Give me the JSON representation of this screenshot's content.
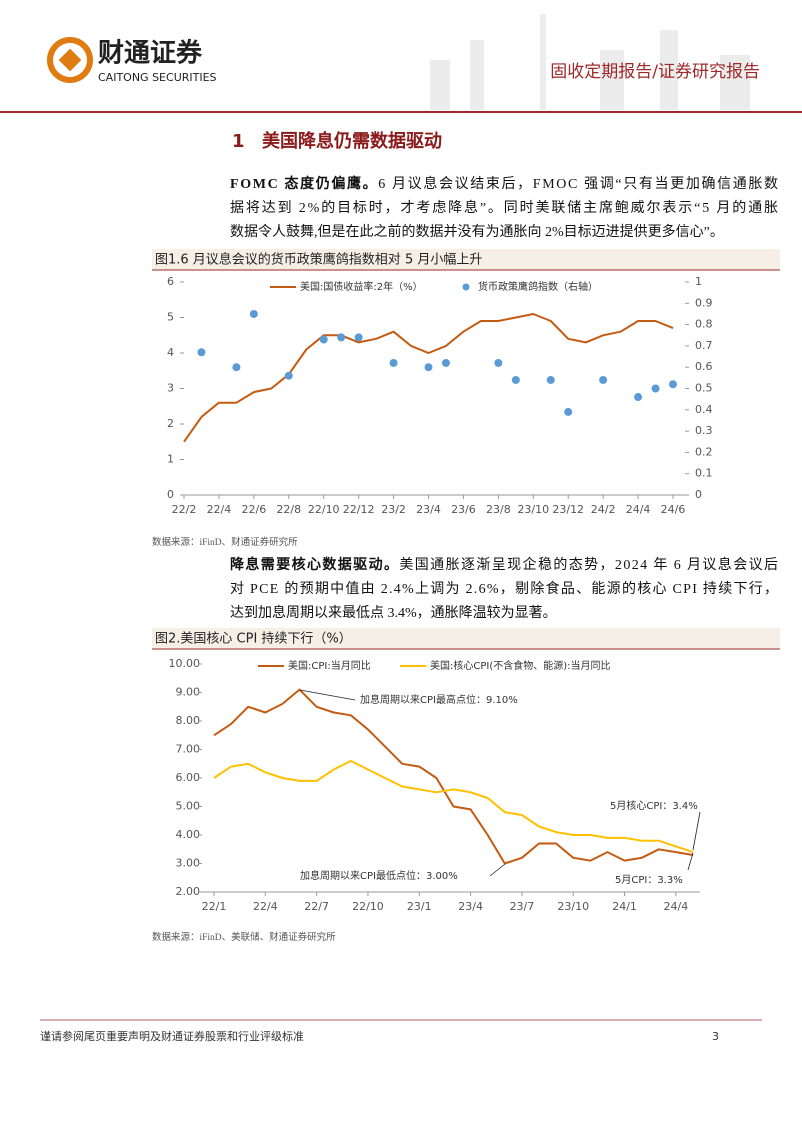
{
  "header": {
    "logo_cn": "财通证券",
    "logo_en": "CAITONG SECURITIES",
    "report_type": "固收定期报告/证券研究报告"
  },
  "section": {
    "number": "1",
    "title": "美国降息仍需数据驱动"
  },
  "paragraphs": [
    {
      "lead": "FOMC 态度仍偏鹰。",
      "lines": [
        "6 月议息会议结束后，FMOC 强调“只有当更加确信通胀数",
        "据将达到 2%的目标时，才考虑降息”。同时美联储主席鲍威尔表示“5 月的通胀",
        "数据令人鼓舞,但是在此之前的数据并没有为通胀向 2%目标迈进提供更多信心”。"
      ]
    },
    {
      "lead": "降息需要核心数据驱动。",
      "lines": [
        "美国通胀逐渐呈现企稳的态势，2024 年 6 月议息会议后",
        "对 PCE 的预期中值由 2.4%上调为 2.6%，剔除食品、能源的核心 CPI 持续下行，",
        "达到加息周期以来最低点 3.4%，通胀降温较为显著。"
      ]
    }
  ],
  "chart_data": [
    {
      "type": "combo",
      "title": "图1.6 月议息会议的货币政策鹰鸽指数相对 5 月小幅上升",
      "source": "数据来源：iFinD、财通证券研究所",
      "categories": [
        "22/2",
        null,
        "22/4",
        null,
        "22/6",
        null,
        "22/8",
        null,
        "22/10",
        null,
        "22/12",
        null,
        "23/2",
        null,
        "23/4",
        null,
        "23/6",
        null,
        "23/8",
        null,
        "23/10",
        null,
        "23/12",
        null,
        "24/2",
        null,
        "24/4",
        null,
        "24/6"
      ],
      "series": [
        {
          "name": "美国:国债收益率:2年（%）",
          "color": "#c55a11",
          "values": [
            1.5,
            2.2,
            2.6,
            2.6,
            2.9,
            3.0,
            3.4,
            4.1,
            4.5,
            4.5,
            4.3,
            4.4,
            4.6,
            4.2,
            4.0,
            4.2,
            4.6,
            4.9,
            4.9,
            5.0,
            5.1,
            4.9,
            4.4,
            4.3,
            4.5,
            4.6,
            4.9,
            4.9,
            4.7
          ]
        },
        {
          "name": "货币政策鹰鸽指数（右轴）",
          "color": "#5b9bd5",
          "axis": "y2",
          "values": [
            null,
            0.67,
            null,
            0.6,
            0.85,
            null,
            0.56,
            null,
            0.73,
            0.74,
            0.74,
            null,
            0.62,
            null,
            0.6,
            0.62,
            null,
            null,
            0.62,
            0.54,
            null,
            0.54,
            0.39,
            null,
            0.54,
            null,
            0.46,
            0.5,
            0.52
          ]
        }
      ],
      "ylim": [
        0,
        6
      ],
      "yticks": [
        0,
        1,
        2,
        3,
        4,
        5,
        6
      ],
      "y2lim": [
        0,
        1
      ],
      "y2ticks": [
        0,
        0.1,
        0.2,
        0.3,
        0.4,
        0.5,
        0.6,
        0.7,
        0.8,
        0.9,
        1
      ]
    },
    {
      "type": "line",
      "title": "图2.美国核心 CPI 持续下行（%）",
      "source": "数据来源：iFinD、美联储、财通证券研究所",
      "categories": [
        "22/1",
        null,
        null,
        "22/4",
        null,
        null,
        "22/7",
        null,
        null,
        "22/10",
        null,
        null,
        "23/1",
        null,
        null,
        "23/4",
        null,
        null,
        "23/7",
        null,
        null,
        "23/10",
        null,
        null,
        "24/1",
        null,
        null,
        "24/4",
        null
      ],
      "series": [
        {
          "name": "美国:CPI:当月同比",
          "color": "#c55a11",
          "values": [
            7.5,
            7.9,
            8.5,
            8.3,
            8.6,
            9.1,
            8.5,
            8.3,
            8.2,
            7.7,
            7.1,
            6.5,
            6.4,
            6.0,
            5.0,
            4.9,
            4.0,
            3.0,
            3.2,
            3.7,
            3.7,
            3.2,
            3.1,
            3.4,
            3.1,
            3.2,
            3.5,
            3.4,
            3.3
          ]
        },
        {
          "name": "美国:核心CPI(不含食物、能源):当月同比",
          "color": "#ffc000",
          "values": [
            6.0,
            6.4,
            6.5,
            6.2,
            6.0,
            5.9,
            5.9,
            6.3,
            6.6,
            6.3,
            6.0,
            5.7,
            5.6,
            5.5,
            5.6,
            5.5,
            5.3,
            4.8,
            4.7,
            4.3,
            4.1,
            4.0,
            4.0,
            3.9,
            3.9,
            3.8,
            3.8,
            3.6,
            3.4
          ]
        }
      ],
      "annotations": [
        "加息周期以来CPI最高点位：9.10%",
        "加息周期以来CPI最低点位：3.00%",
        "5月核心CPI：3.4%",
        "5月CPI：3.3%"
      ],
      "ylim": [
        2,
        10
      ],
      "yticks": [
        {
          "value": 2,
          "label": "2.00"
        },
        {
          "value": 3,
          "label": "3.00"
        },
        {
          "value": 4,
          "label": "4.00"
        },
        {
          "value": 5,
          "label": "5.00"
        },
        {
          "value": 6,
          "label": "6.00"
        },
        {
          "value": 7,
          "label": "7.00"
        },
        {
          "value": 8,
          "label": "8.00"
        },
        {
          "value": 9,
          "label": "9.00"
        },
        {
          "value": 10,
          "label": "10.00"
        }
      ]
    }
  ],
  "footer": {
    "disclaimer": "谨请参阅尾页重要声明及财通证券股票和行业评级标准",
    "page": "3"
  }
}
